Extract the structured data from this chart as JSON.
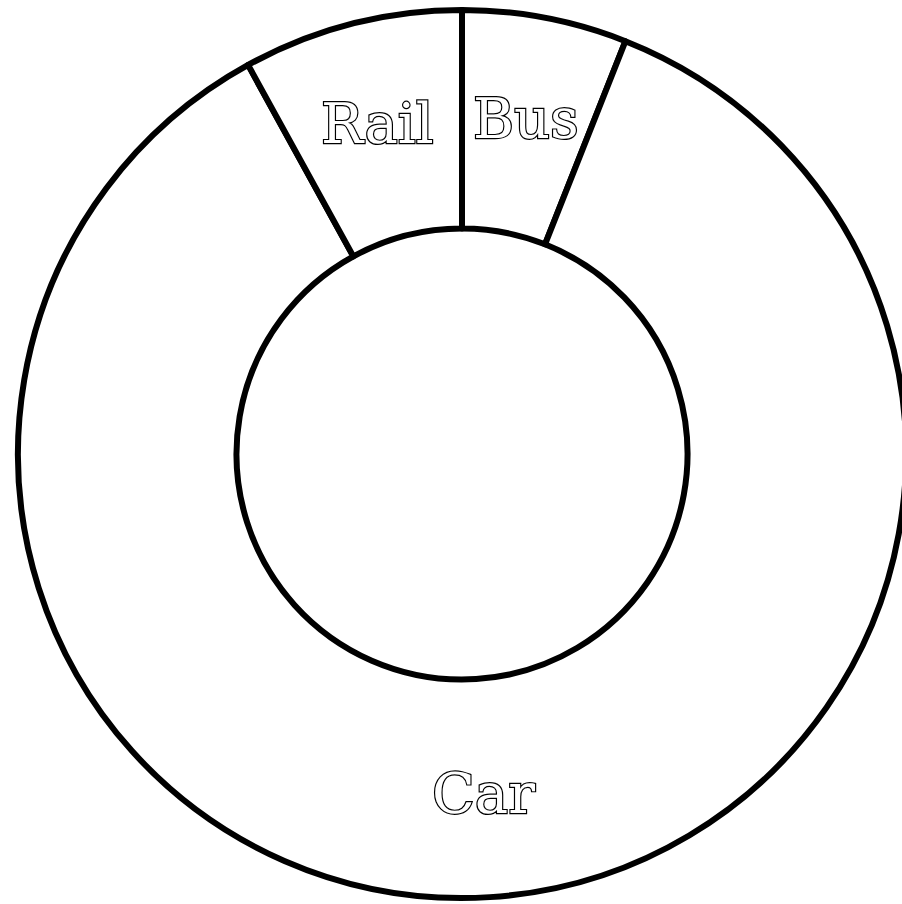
{
  "chart_data": {
    "type": "donut",
    "categories": [
      "Bus",
      "Car",
      "Rail"
    ],
    "values": [
      6,
      86,
      8
    ],
    "colors": [
      "#ffffff",
      "#ffffff",
      "#ffffff"
    ],
    "legend": false
  }
}
